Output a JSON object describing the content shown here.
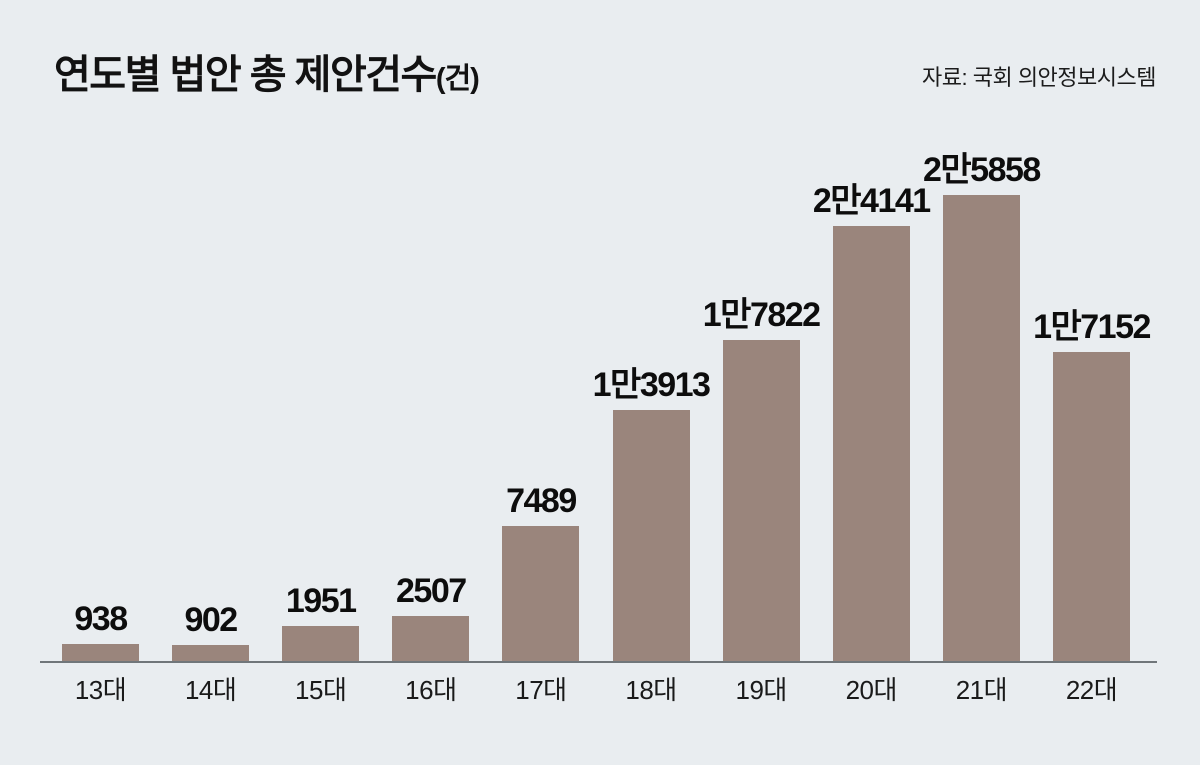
{
  "header": {
    "title": "연도별 법안 총 제안건수",
    "title_unit": "(건)",
    "source": "자료: 국회 의안정보시스템"
  },
  "colors": {
    "background": "#e9edf0",
    "bar": "#9a857c",
    "axis": "#70767a",
    "label_text": "#0d0d0d"
  },
  "chart_data": {
    "type": "bar",
    "title": "연도별 법안 총 제안건수(건)",
    "source": "자료: 국회 의안정보시스템",
    "categories": [
      "13대",
      "14대",
      "15대",
      "16대",
      "17대",
      "18대",
      "19대",
      "20대",
      "21대",
      "22대"
    ],
    "values": [
      938,
      902,
      1951,
      2507,
      7489,
      13913,
      17822,
      24141,
      25858,
      17152
    ],
    "value_labels": [
      "938",
      "902",
      "1951",
      "2507",
      "7489",
      "1만3913",
      "1만7822",
      "2만4141",
      "2만5858",
      "1만7152"
    ],
    "xlabel": "",
    "ylabel": "건",
    "ylim": [
      0,
      25858
    ],
    "grid": false,
    "legend": null
  }
}
